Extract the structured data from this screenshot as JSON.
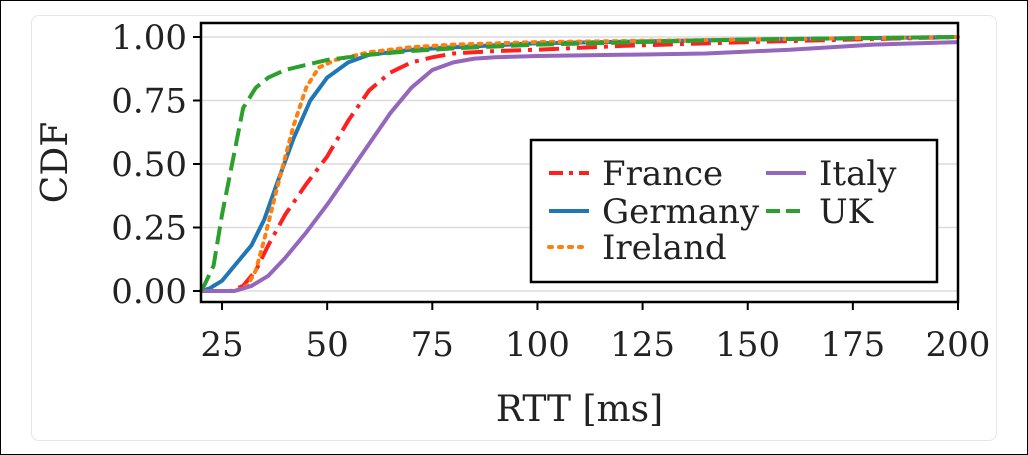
{
  "chart_data": {
    "type": "line",
    "title": "",
    "xlabel": "RTT [ms]",
    "ylabel": "CDF",
    "xlim": [
      20,
      200
    ],
    "ylim": [
      0,
      1.05
    ],
    "grid": true,
    "legend_position": "center-right",
    "xticks": [
      25,
      50,
      75,
      100,
      125,
      150,
      175,
      200
    ],
    "xtick_labels": [
      "25",
      "50",
      "75",
      "100",
      "125",
      "150",
      "175",
      "200"
    ],
    "yticks": [
      0,
      0.25,
      0.5,
      0.75,
      1.0
    ],
    "ytick_labels": [
      "0.00",
      "0.25",
      "0.50",
      "0.75",
      "1.00"
    ],
    "series": [
      {
        "name": "France",
        "color": "#ff1f1f",
        "style": "dashdot",
        "x": [
          20,
          27,
          30,
          33,
          36,
          40,
          45,
          50,
          55,
          60,
          65,
          70,
          75,
          80,
          90,
          100,
          120,
          150,
          175,
          200
        ],
        "y": [
          0,
          0,
          0.02,
          0.08,
          0.18,
          0.3,
          0.42,
          0.53,
          0.67,
          0.79,
          0.86,
          0.9,
          0.92,
          0.935,
          0.945,
          0.95,
          0.965,
          0.98,
          0.99,
          1.0
        ]
      },
      {
        "name": "Germany",
        "color": "#1f77b4",
        "style": "solid",
        "x": [
          20,
          22,
          25,
          28,
          32,
          35,
          38,
          42,
          46,
          50,
          55,
          60,
          70,
          80,
          100,
          150,
          200
        ],
        "y": [
          0,
          0.01,
          0.04,
          0.1,
          0.18,
          0.28,
          0.42,
          0.6,
          0.75,
          0.84,
          0.9,
          0.93,
          0.95,
          0.96,
          0.975,
          0.99,
          1.0
        ]
      },
      {
        "name": "Ireland",
        "color": "#ff7f0e",
        "style": "dotted",
        "x": [
          20,
          28,
          31,
          33,
          35,
          38,
          42,
          45,
          48,
          52,
          60,
          70,
          80,
          100,
          150,
          200
        ],
        "y": [
          0,
          0,
          0.02,
          0.08,
          0.2,
          0.4,
          0.65,
          0.8,
          0.88,
          0.91,
          0.94,
          0.96,
          0.97,
          0.98,
          0.99,
          1.0
        ]
      },
      {
        "name": "Italy",
        "color": "#9467bd",
        "style": "solid",
        "x": [
          20,
          28,
          32,
          36,
          40,
          45,
          50,
          55,
          60,
          65,
          70,
          75,
          80,
          85,
          90,
          100,
          120,
          140,
          160,
          180,
          200
        ],
        "y": [
          0,
          0,
          0.02,
          0.06,
          0.13,
          0.23,
          0.34,
          0.46,
          0.58,
          0.7,
          0.8,
          0.87,
          0.9,
          0.915,
          0.92,
          0.925,
          0.93,
          0.935,
          0.95,
          0.97,
          0.98
        ]
      },
      {
        "name": "UK",
        "color": "#2ca02c",
        "style": "dashed",
        "x": [
          20,
          21,
          23,
          25,
          28,
          30,
          33,
          36,
          40,
          45,
          50,
          55,
          60,
          70,
          80,
          100,
          150,
          200
        ],
        "y": [
          0,
          0.03,
          0.1,
          0.3,
          0.55,
          0.72,
          0.8,
          0.84,
          0.87,
          0.89,
          0.91,
          0.92,
          0.93,
          0.945,
          0.955,
          0.97,
          0.99,
          1.0
        ]
      }
    ]
  }
}
